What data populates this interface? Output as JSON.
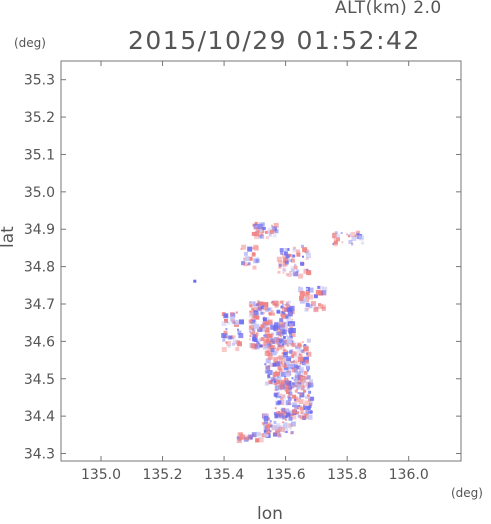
{
  "map": {
    "altitude_label": "ALT(km) 2.0",
    "timestamp": "2015/10/29 01:52:42",
    "lat_unit": "(deg)",
    "lon_unit": "(deg)",
    "lat_axis_label": "lat",
    "lon_axis_label": "lon",
    "lon_range": [
      134.87,
      136.17
    ],
    "lat_range": [
      34.28,
      35.35
    ],
    "lon_ticks": [
      "135.0",
      "135.2",
      "135.4",
      "135.6",
      "135.8",
      "136.0"
    ],
    "lat_ticks": [
      "34.3",
      "34.4",
      "34.5",
      "34.6",
      "34.7",
      "34.8",
      "34.9",
      "35.0",
      "35.1",
      "35.2",
      "35.3"
    ],
    "colors": {
      "positive": "#f08080",
      "negative": "#6a6cf0",
      "frame": "#777777"
    },
    "grid": false
  }
}
